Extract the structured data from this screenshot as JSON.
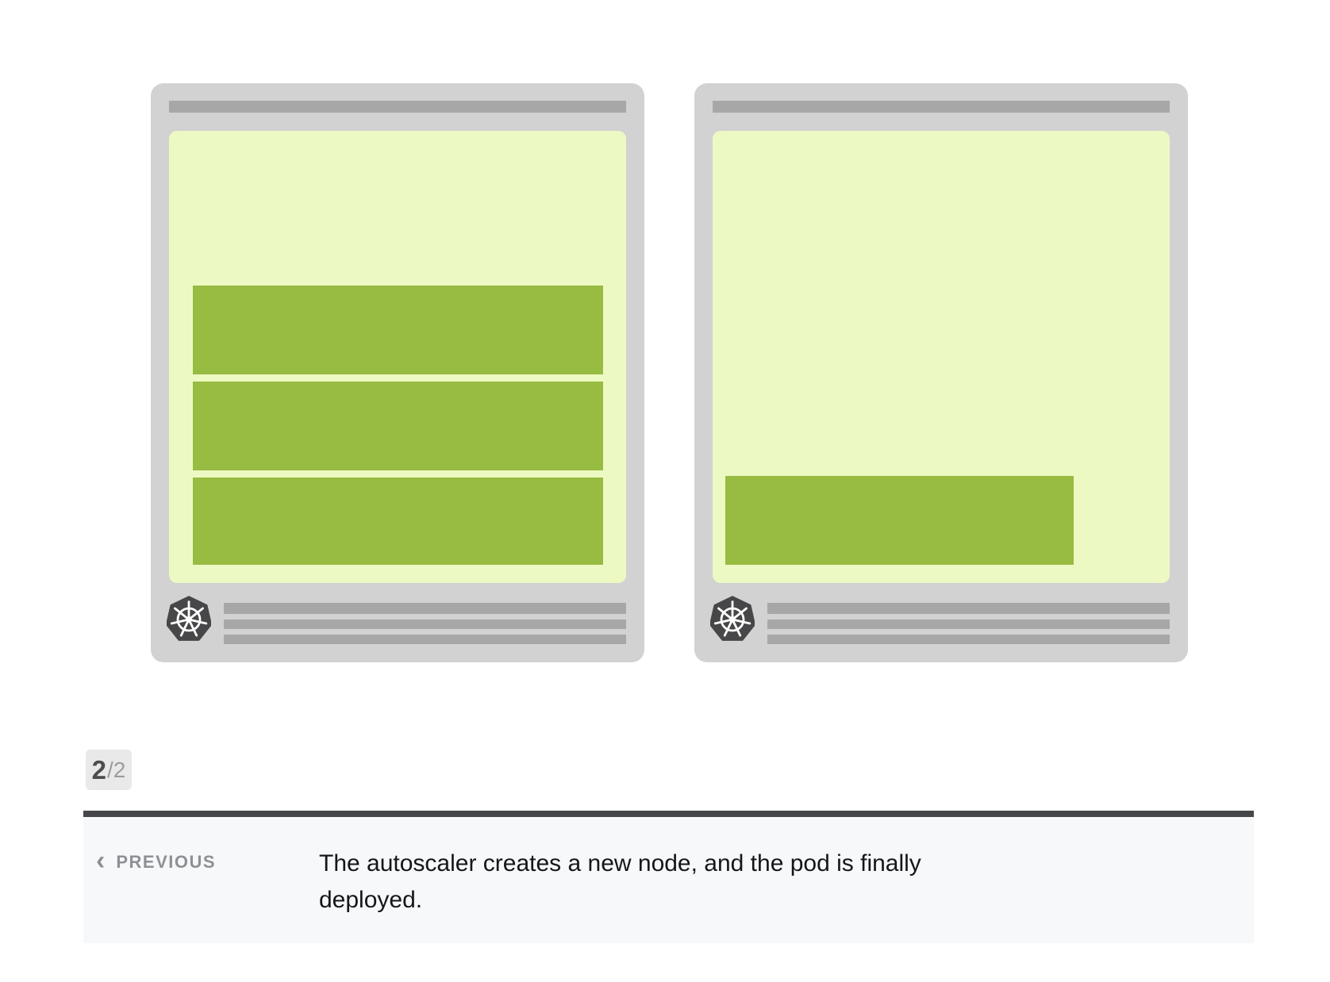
{
  "pagination": {
    "current": "2",
    "total_suffix": "/2"
  },
  "footer": {
    "previous_label": "PREVIOUS",
    "caption": "The autoscaler creates a new node, and the pod is finally\ndeployed."
  },
  "icons": {
    "chevron_left": "‹",
    "node_logo": "kubernetes-helm-wheel-icon"
  },
  "diagram": {
    "description_visible_elements": "two server node cards with kubernetes logos; left node holds 3 pod bars, right node holds 1 pod bar",
    "nodes": [
      {
        "id": "node-1",
        "pods": 3
      },
      {
        "id": "node-2",
        "pods": 1
      }
    ]
  },
  "colors": {
    "node_gray": "#d2d2d2",
    "slot_gray": "#a7a7a7",
    "pale_green": "#edf9c3",
    "pod_green": "#98bb41",
    "logo_dark": "#474749",
    "badge_bg": "#e9e9e9",
    "divider_dark": "#46474a",
    "footer_bg": "#f6f8fa",
    "prev_gray": "#8e9095",
    "caption_text": "#151619"
  }
}
